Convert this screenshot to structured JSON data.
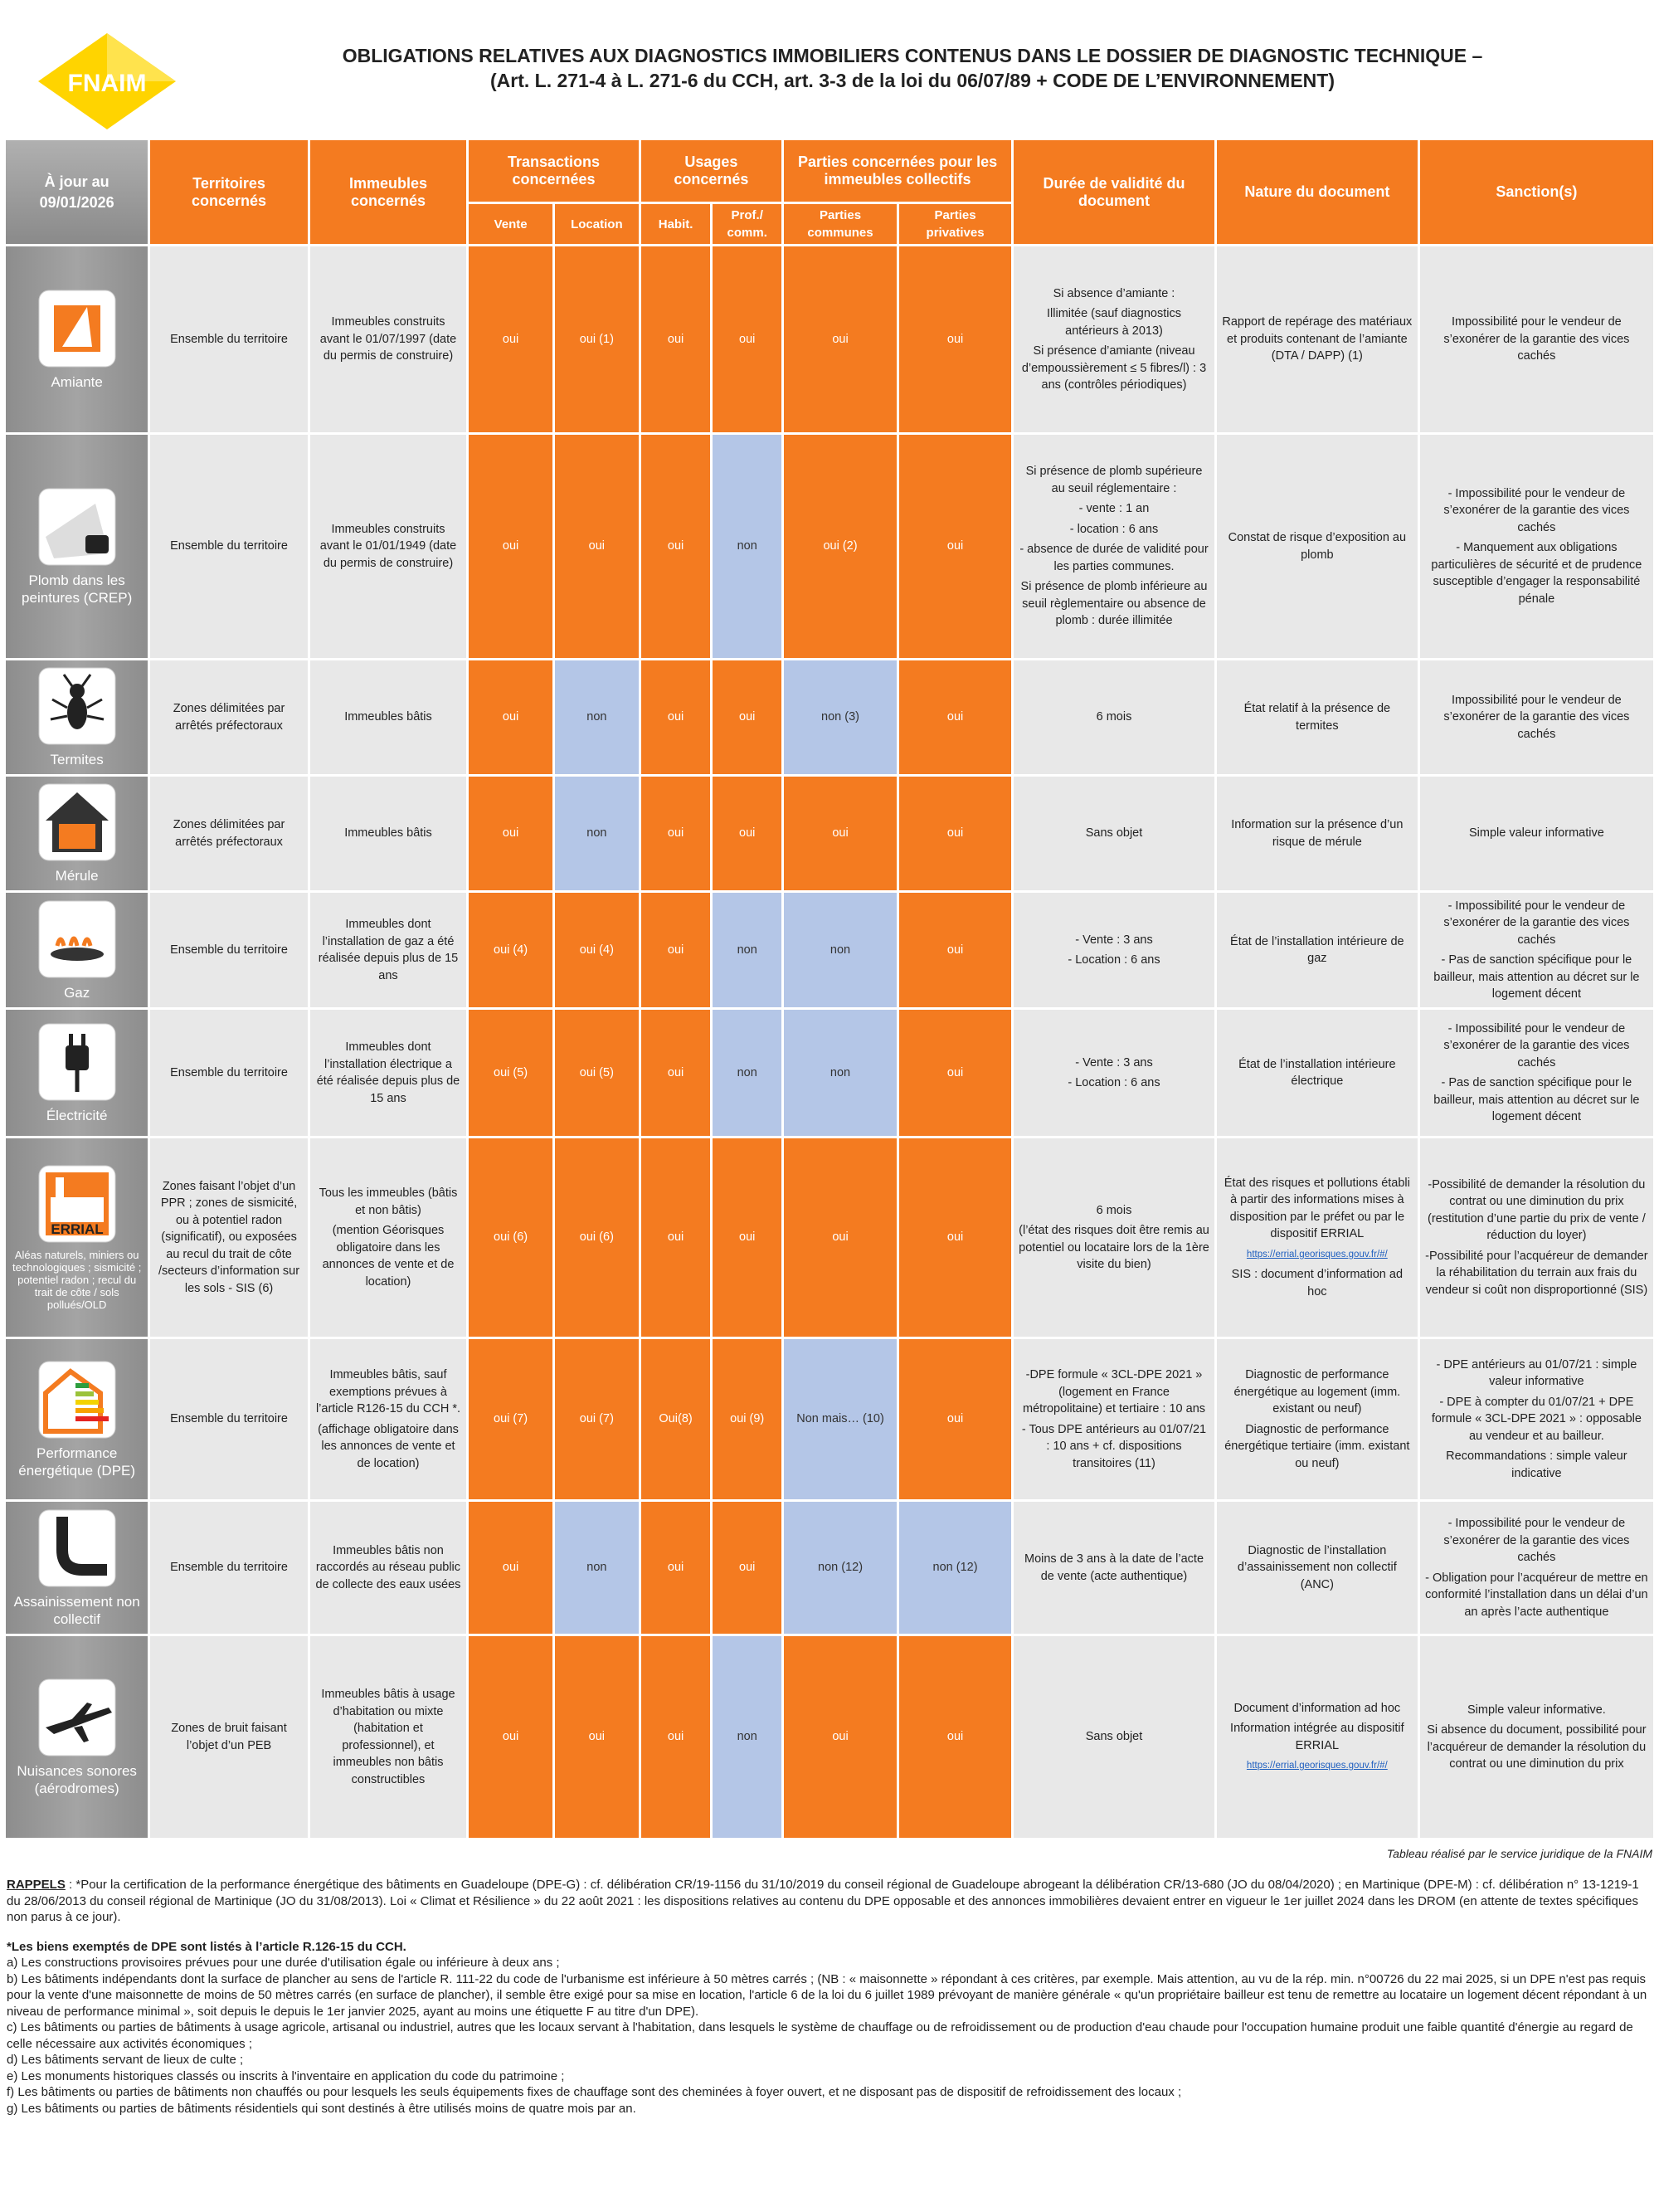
{
  "header": {
    "logo": "FNAIM",
    "title": [
      "OBLIGATIONS RELATIVES AUX DIAGNOSTICS IMMOBILIERS CONTENUS DANS LE DOSSIER DE DIAGNOSTIC TECHNIQUE –",
      "(Art. L. 271-4 à L. 271-6 du CCH, art. 3-3 de la loi du 06/07/89 + CODE DE L’ENVIRONNEMENT)"
    ]
  },
  "table": {
    "head": {
      "date": [
        "À jour au",
        "09/01/2026"
      ],
      "territoires": "Territoires concernés",
      "immeubles": "Immeubles concernés",
      "transactions": "Transactions concernées",
      "vente": "Vente",
      "location": "Location",
      "usages": "Usages concernés",
      "habit": "Habit.",
      "prof": "Prof./ comm.",
      "parties": "Parties concernées pour les immeubles collectifs",
      "communes": "Parties communes",
      "privatives": "Parties privatives",
      "duree": "Durée de validité du document",
      "nature": "Nature du document",
      "sanction": "Sanction(s)"
    },
    "rows": [
      {
        "label": "Amiante",
        "cells": [
          "Ensemble du territoire",
          "Immeubles construits avant le 01/07/1997 (date du permis de construire)",
          "oui",
          "oui (1)",
          "oui",
          "oui",
          "oui",
          "oui",
          [
            "Si absence d’amiante :",
            "Illimitée (sauf diagnostics antérieurs à 2013)",
            "Si présence d’amiante (niveau d’empoussièrement ≤ 5 fibres/l) : 3 ans (contrôles périodiques)"
          ],
          "Rapport de repérage des matériaux et produits contenant de l’amiante (DTA / DAPP) (1)",
          "Impossibilité pour le vendeur de s’exonérer de la garantie des vices cachés"
        ]
      },
      {
        "label": "Plomb dans les peintures (CREP)",
        "cells": [
          "Ensemble du territoire",
          "Immeubles construits avant le 01/01/1949 (date du permis de construire)",
          "oui",
          "oui",
          "oui",
          "non",
          "oui (2)",
          "oui",
          [
            "Si présence de plomb supérieure au seuil réglementaire :",
            "- vente : 1 an",
            "- location : 6 ans",
            "- absence de durée de validité pour les parties communes.",
            "Si présence de plomb inférieure au seuil règlementaire ou absence de plomb : durée illimitée"
          ],
          "Constat de risque d’exposition au plomb",
          [
            "- Impossibilité pour le vendeur de s’exonérer de la garantie des vices cachés",
            "- Manquement aux obligations particulières de sécurité et de prudence susceptible d’engager la responsabilité pénale"
          ]
        ]
      },
      {
        "label": "Termites",
        "cells": [
          "Zones délimitées par arrêtés préfectoraux",
          "Immeubles bâtis",
          "oui",
          "non",
          "oui",
          "oui",
          "non (3)",
          "oui",
          "6 mois",
          "État relatif à la présence de termites",
          "Impossibilité pour le vendeur de s’exonérer de la garantie des vices cachés"
        ]
      },
      {
        "label": "Mérule",
        "cells": [
          "Zones délimitées par arrêtés préfectoraux",
          "Immeubles bâtis",
          "oui",
          "non",
          "oui",
          "oui",
          "oui",
          "oui",
          "Sans objet",
          "Information sur la présence d’un risque de mérule",
          "Simple valeur informative"
        ]
      },
      {
        "label": "Gaz",
        "cells": [
          "Ensemble du territoire",
          "Immeubles dont l’installation de gaz a été réalisée depuis plus de 15 ans",
          "oui (4)",
          "oui (4)",
          "oui",
          "non",
          "non",
          "oui",
          [
            "- Vente : 3 ans",
            "- Location : 6 ans"
          ],
          "État de l’installation intérieure de gaz",
          [
            "- Impossibilité pour le vendeur de s’exonérer de la garantie des vices cachés",
            "- Pas de sanction spécifique pour le bailleur, mais attention au décret sur le logement décent"
          ]
        ]
      },
      {
        "label": "Électricité",
        "cells": [
          "Ensemble du territoire",
          "Immeubles dont l’installation électrique a été réalisée depuis plus de 15 ans",
          "oui (5)",
          "oui (5)",
          "oui",
          "non",
          "non",
          "oui",
          [
            "- Vente : 3 ans",
            "- Location : 6 ans"
          ],
          "État de l’installation intérieure électrique",
          [
            "- Impossibilité pour le vendeur de s’exonérer de la garantie des vices cachés",
            "- Pas de sanction spécifique pour le bailleur, mais attention au décret sur le logement décent"
          ]
        ]
      },
      {
        "label": "Aléas naturels, miniers ou technologiques ; sismicité ; potentiel radon ; recul du trait de côte / sols pollués/OLD",
        "icon_text": "ERRIAL",
        "cells": [
          "Zones faisant l’objet d’un PPR ; zones de sismicité, ou à potentiel radon (significatif), ou exposées au recul du trait de côte /secteurs d’information sur les sols - SIS (6)",
          [
            "Tous les immeubles (bâtis et non bâtis)",
            "(mention Géorisques obligatoire dans les annonces de vente et de location)"
          ],
          "oui (6)",
          "oui (6)",
          "oui",
          "oui",
          "oui",
          "oui",
          [
            "6 mois",
            "(l’état des risques doit être remis au potentiel ou locataire lors de la 1ère visite du bien)"
          ],
          [
            "État des risques et pollutions établi à partir des informations mises à disposition par le préfet ou par le dispositif ERRIAL",
            "https://errial.georisques.gouv.fr/#/",
            "SIS : document d’information ad hoc"
          ],
          [
            "-Possibilité de demander la résolution du contrat ou une diminution du prix (restitution d’une partie du prix de vente / réduction du loyer)",
            "-Possibilité pour l’acquéreur de demander la réhabilitation du terrain aux frais du vendeur si coût non disproportionné (SIS)"
          ]
        ]
      },
      {
        "label": "Performance énergétique (DPE)",
        "cells": [
          "Ensemble du territoire",
          [
            "Immeubles bâtis, sauf exemptions prévues à l’article R126-15 du CCH *.",
            "(affichage obligatoire dans les annonces de vente et de location)"
          ],
          "oui (7)",
          "oui (7)",
          "Oui(8)",
          "oui (9)",
          "Non mais… (10)",
          "oui",
          [
            "-DPE formule « 3CL-DPE 2021 » (logement en France métropolitaine) et tertiaire : 10 ans",
            "- Tous DPE antérieurs au 01/07/21 : 10 ans + cf. dispositions transitoires (11)"
          ],
          [
            "Diagnostic de performance énergétique au logement (imm. existant ou neuf)",
            "Diagnostic de performance énergétique tertiaire (imm. existant ou neuf)"
          ],
          [
            "- DPE antérieurs au 01/07/21 : simple valeur informative",
            "- DPE à compter du 01/07/21 + DPE formule « 3CL-DPE 2021 » : opposable au vendeur et au bailleur.",
            "Recommandations : simple valeur indicative"
          ]
        ]
      },
      {
        "label": "Assainissement non collectif",
        "cells": [
          "Ensemble du territoire",
          "Immeubles bâtis non raccordés au réseau public de collecte des eaux usées",
          "oui",
          "non",
          "oui",
          "oui",
          "non (12)",
          "non (12)",
          "Moins de 3 ans à la date de l’acte de vente (acte authentique)",
          "Diagnostic de l’installation d’assainissement non collectif (ANC)",
          [
            "- Impossibilité pour le vendeur de s’exonérer de la garantie des vices cachés",
            "- Obligation pour l’acquéreur de mettre en conformité l’installation dans un délai d’un an après l’acte authentique"
          ]
        ]
      },
      {
        "label": "Nuisances sonores (aérodromes)",
        "cells": [
          "Zones de bruit faisant l’objet d’un PEB",
          "Immeubles bâtis à usage d’habitation ou mixte (habitation et professionnel), et immeubles non bâtis constructibles",
          "oui",
          "oui",
          "oui",
          "non",
          "oui",
          "oui",
          "Sans objet",
          [
            "Document d’information ad hoc",
            "Information intégrée au dispositif ERRIAL",
            "https://errial.georisques.gouv.fr/#/"
          ],
          [
            "Simple valeur informative.",
            "Si absence du document, possibilité pour l’acquéreur de demander la résolution du contrat ou une diminution du prix"
          ]
        ]
      }
    ]
  },
  "footer": {
    "credit": "Tableau réalisé par le service juridique de la FNAIM",
    "rappels_label": "RAPPELS",
    "rappels": " : *Pour la certification de la performance énergétique des bâtiments en Guadeloupe (DPE-G) : cf. délibération CR/19-1156 du 31/10/2019 du conseil régional de Guadeloupe abrogeant la délibération CR/13-680 (JO du 08/04/2020) ; en Martinique (DPE-M) : cf. délibération n° 13-1219-1 du 28/06/2013 du conseil régional de Martinique (JO du 31/08/2013). Loi « Climat et Résilience » du 22 août 2021 : les dispositions relatives au contenu du DPE opposable et des annonces immobilières devaient entrer en vigueur le 1er juillet 2024 dans les DROM (en attente de textes spécifiques non parus à ce jour).",
    "exempt_title": "*Les biens exemptés de DPE sont listés à l’article R.126-15 du CCH.",
    "exempt_items": [
      "a) Les constructions provisoires prévues pour une durée d'utilisation égale ou inférieure à deux ans ;",
      "b) Les bâtiments indépendants dont la surface de plancher au sens de l'article R. 111-22 du code de l'urbanisme est inférieure à 50 mètres carrés ; (NB : « maisonnette » répondant à ces critères, par exemple. Mais attention, au vu de la rép. min. n°00726 du 22 mai 2025, si un DPE n'est pas requis pour la vente d'une maisonnette de moins de 50 mètres carrés (en surface de plancher), il semble être exigé pour sa mise en location, l'article 6 de la loi du 6 juillet 1989 prévoyant de manière générale « qu'un propriétaire bailleur est tenu de remettre au locataire un logement décent répondant à un niveau de performance minimal », soit depuis le depuis le 1er janvier 2025, ayant au moins une étiquette F au titre d'un DPE).",
      "c) Les bâtiments ou parties de bâtiments à usage agricole, artisanal ou industriel, autres que les locaux servant à l'habitation, dans lesquels le système de chauffage ou de refroidissement ou de production d'eau chaude pour l'occupation humaine produit une faible quantité d'énergie au regard de celle nécessaire aux activités économiques ;",
      "d) Les bâtiments servant de lieux de culte ;",
      "e) Les monuments historiques classés ou inscrits à l'inventaire en application du code du patrimoine ;",
      "f) Les bâtiments ou parties de bâtiments non chauffés ou pour lesquels les seuls équipements fixes de chauffage sont des cheminées à foyer ouvert, et ne disposant pas de dispositif de refroidissement des locaux ;",
      "g) Les bâtiments ou parties de bâtiments résidentiels qui sont destinés à être utilisés moins de quatre mois par an."
    ]
  }
}
